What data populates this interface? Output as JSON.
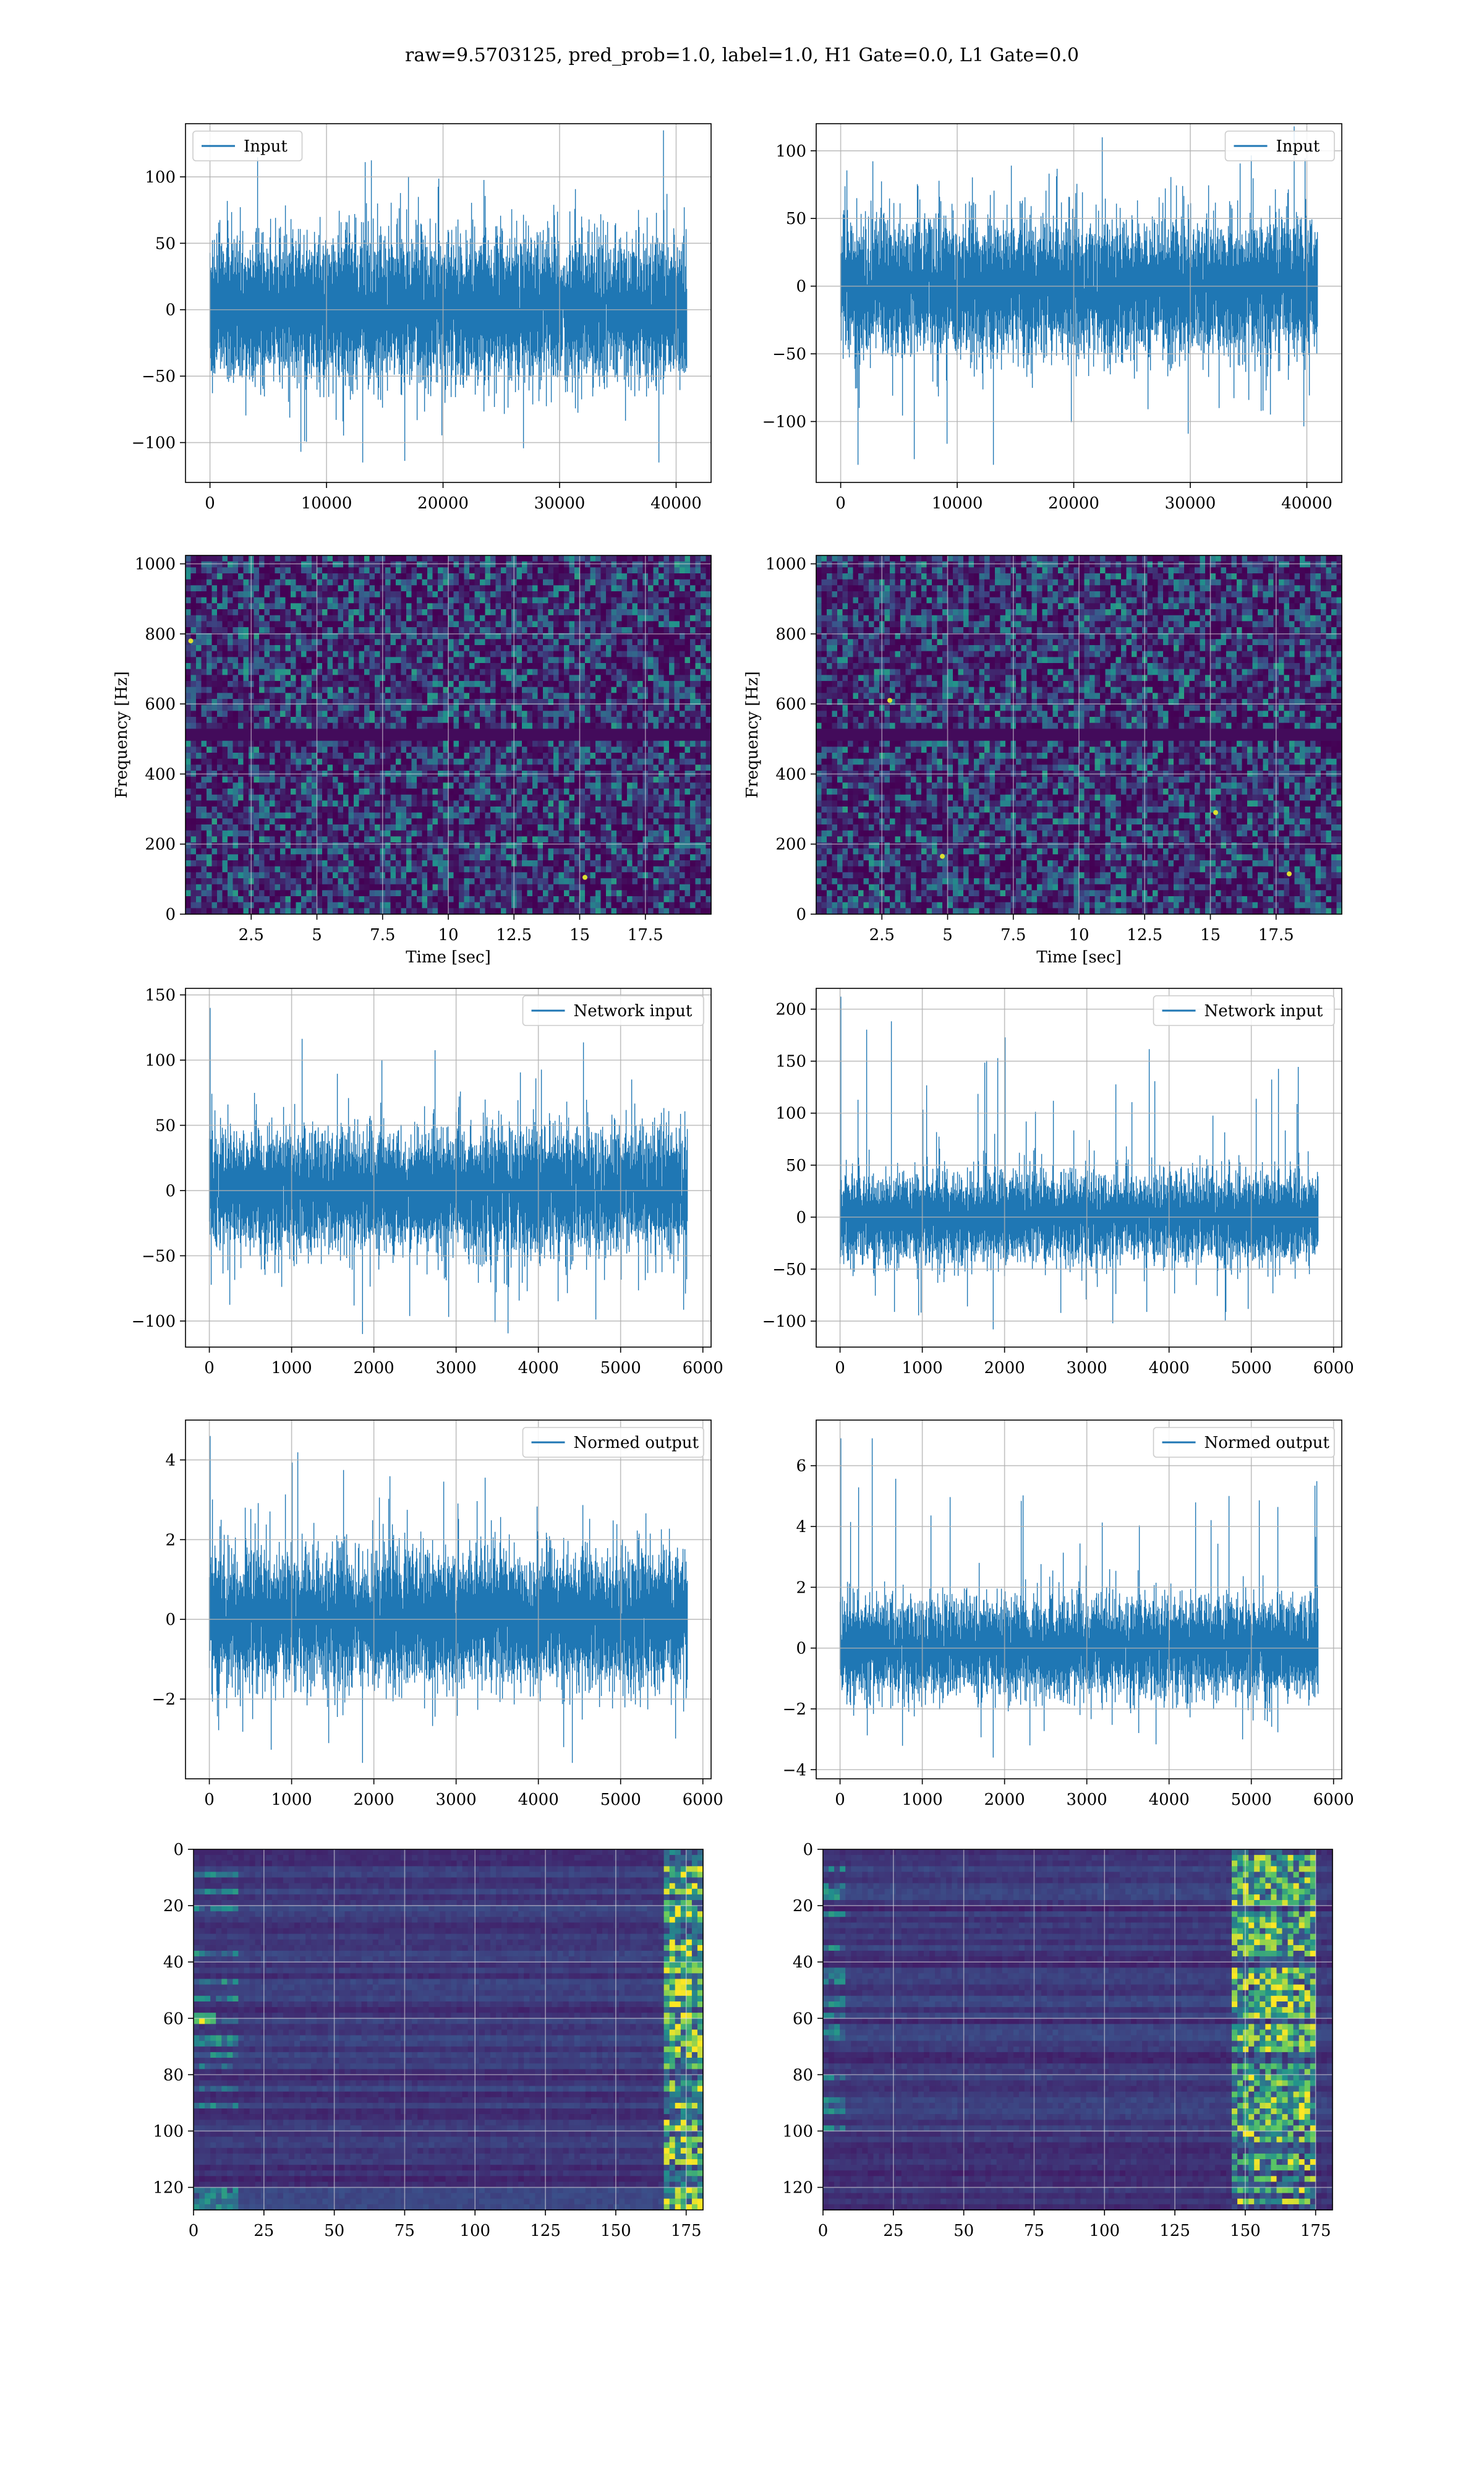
{
  "figure": {
    "suptitle": "raw=9.5703125, pred_prob=1.0, label=1.0, H1 Gate=0.0, L1 Gate=0.0"
  },
  "colors": {
    "line": "#1f77b4",
    "grid": "#b0b0b0",
    "viridis_low": "#440154",
    "viridis_mid": "#21918c",
    "viridis_high": "#fde725"
  },
  "chart_data": [
    {
      "id": "input-h1",
      "type": "line",
      "title": "",
      "xlabel": "",
      "ylabel": "",
      "xlim": [
        -2100,
        43000
      ],
      "ylim": [
        -130,
        140
      ],
      "xticks": [
        0,
        10000,
        20000,
        30000,
        40000
      ],
      "yticks": [
        -100,
        -50,
        0,
        50,
        100
      ],
      "legend": "upper left",
      "series": [
        {
          "name": "Input",
          "n_points": 40960,
          "x_range": [
            0,
            40960
          ],
          "amplitude_p99": 65,
          "min": -115,
          "max": 135
        }
      ]
    },
    {
      "id": "input-l1",
      "type": "line",
      "title": "",
      "xlabel": "",
      "ylabel": "",
      "xlim": [
        -2100,
        43000
      ],
      "ylim": [
        -145,
        120
      ],
      "xticks": [
        0,
        10000,
        20000,
        30000,
        40000
      ],
      "yticks": [
        -100,
        -50,
        0,
        50,
        100
      ],
      "legend": "upper right",
      "series": [
        {
          "name": "Input",
          "n_points": 40960,
          "x_range": [
            0,
            40960
          ],
          "amplitude_p99": 60,
          "min": -132,
          "max": 118
        }
      ]
    },
    {
      "id": "spectrogram-h1",
      "type": "heatmap",
      "title": "",
      "xlabel": "Time [sec]",
      "ylabel": "Frequency [Hz]",
      "xlim": [
        0,
        20
      ],
      "ylim": [
        0,
        1024
      ],
      "xticks": [
        2.5,
        5.0,
        7.5,
        10.0,
        12.5,
        15.0,
        17.5
      ],
      "yticks": [
        0,
        200,
        400,
        600,
        800,
        1000
      ],
      "colormap": "viridis",
      "hot_spots": [
        {
          "x": 15.2,
          "y": 105
        },
        {
          "x": 0.2,
          "y": 780
        }
      ],
      "note": "mostly uniform noise; faint horizontal line near 500 Hz"
    },
    {
      "id": "spectrogram-l1",
      "type": "heatmap",
      "title": "",
      "xlabel": "Time [sec]",
      "ylabel": "Frequency [Hz]",
      "xlim": [
        0,
        20
      ],
      "ylim": [
        0,
        1024
      ],
      "xticks": [
        2.5,
        5.0,
        7.5,
        10.0,
        12.5,
        15.0,
        17.5
      ],
      "yticks": [
        0,
        200,
        400,
        600,
        800,
        1000
      ],
      "colormap": "viridis",
      "hot_spots": [
        {
          "x": 18.0,
          "y": 115
        },
        {
          "x": 2.8,
          "y": 610
        },
        {
          "x": 15.2,
          "y": 290
        },
        {
          "x": 4.8,
          "y": 165
        }
      ],
      "note": "mostly uniform noise; faint horizontal line near 500 Hz"
    },
    {
      "id": "network-input-h1",
      "type": "line",
      "title": "",
      "xlabel": "",
      "ylabel": "",
      "xlim": [
        -290,
        6100
      ],
      "ylim": [
        -120,
        155
      ],
      "xticks": [
        0,
        1000,
        2000,
        3000,
        4000,
        5000,
        6000
      ],
      "yticks": [
        -100,
        -50,
        0,
        50,
        100,
        150
      ],
      "legend": "upper right",
      "series": [
        {
          "name": "Network input",
          "n_points": 5820,
          "x_range": [
            0,
            5820
          ],
          "amplitude_p99": 55,
          "min": -110,
          "max": 140
        }
      ]
    },
    {
      "id": "network-input-l1",
      "type": "line",
      "title": "",
      "xlabel": "",
      "ylabel": "",
      "xlim": [
        -290,
        6100
      ],
      "ylim": [
        -125,
        220
      ],
      "xticks": [
        0,
        1000,
        2000,
        3000,
        4000,
        5000,
        6000
      ],
      "yticks": [
        -100,
        -50,
        0,
        50,
        100,
        150,
        200
      ],
      "legend": "upper right",
      "series": [
        {
          "name": "Network input",
          "n_points": 5820,
          "x_range": [
            0,
            5820
          ],
          "amplitude_p99": 50,
          "min": -108,
          "max": 212
        }
      ]
    },
    {
      "id": "normed-output-h1",
      "type": "line",
      "title": "",
      "xlabel": "",
      "ylabel": "",
      "xlim": [
        -290,
        6100
      ],
      "ylim": [
        -4.0,
        5.0
      ],
      "xticks": [
        0,
        1000,
        2000,
        3000,
        4000,
        5000,
        6000
      ],
      "yticks": [
        -2,
        0,
        2,
        4
      ],
      "legend": "upper right",
      "series": [
        {
          "name": "Normed output",
          "n_points": 5820,
          "x_range": [
            0,
            5820
          ],
          "amplitude_p99": 2.0,
          "min": -3.6,
          "max": 4.6
        }
      ]
    },
    {
      "id": "normed-output-l1",
      "type": "line",
      "title": "",
      "xlabel": "",
      "ylabel": "",
      "xlim": [
        -290,
        6100
      ],
      "ylim": [
        -4.3,
        7.5
      ],
      "xticks": [
        0,
        1000,
        2000,
        3000,
        4000,
        5000,
        6000
      ],
      "yticks": [
        -4,
        -2,
        0,
        2,
        4,
        6
      ],
      "legend": "upper right",
      "series": [
        {
          "name": "Normed output",
          "n_points": 5820,
          "x_range": [
            0,
            5820
          ],
          "amplitude_p99": 1.9,
          "min": -3.6,
          "max": 6.9
        }
      ]
    },
    {
      "id": "features-h1",
      "type": "heatmap",
      "title": "",
      "xlabel": "",
      "ylabel": "",
      "xlim": [
        0,
        181
      ],
      "ylim": [
        128,
        0
      ],
      "xticks": [
        0,
        25,
        50,
        75,
        100,
        125,
        150,
        175
      ],
      "yticks": [
        0,
        20,
        40,
        60,
        80,
        100,
        120
      ],
      "colormap": "viridis",
      "note": "128 channels x 181 steps; activity concentrated near right edge (170-181) and sparse early structure"
    },
    {
      "id": "features-l1",
      "type": "heatmap",
      "title": "",
      "xlabel": "",
      "ylabel": "",
      "xlim": [
        0,
        181
      ],
      "ylim": [
        128,
        0
      ],
      "xticks": [
        0,
        25,
        50,
        75,
        100,
        125,
        150,
        175
      ],
      "yticks": [
        0,
        20,
        40,
        60,
        80,
        100,
        120
      ],
      "colormap": "viridis",
      "note": "128 channels x 181 steps; bright band around steps 150-175"
    }
  ]
}
